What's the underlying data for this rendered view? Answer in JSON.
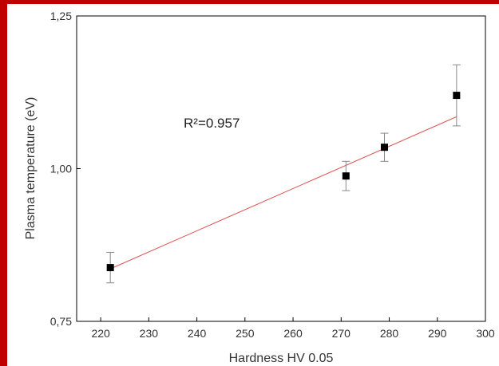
{
  "chart_data": {
    "type": "scatter",
    "xlabel": "Hardness HV 0.05",
    "ylabel": "Plasma temperature (eV)",
    "xlim": [
      215,
      300
    ],
    "ylim": [
      0.75,
      1.25
    ],
    "x_ticks": [
      220,
      230,
      240,
      250,
      260,
      270,
      280,
      290,
      300
    ],
    "y_ticks": [
      {
        "value": 0.75,
        "label": "0,75"
      },
      {
        "value": 1.0,
        "label": "1,00"
      },
      {
        "value": 1.25,
        "label": "1,25"
      }
    ],
    "points": [
      {
        "x": 222,
        "y": 0.838,
        "err": 0.025
      },
      {
        "x": 271,
        "y": 0.988,
        "err": 0.024
      },
      {
        "x": 279,
        "y": 1.035,
        "err": 0.023
      },
      {
        "x": 294,
        "y": 1.12,
        "err": 0.05
      }
    ],
    "fit_line": {
      "x": [
        222,
        294
      ],
      "y": [
        0.836,
        1.085
      ],
      "color": "#e05050"
    },
    "annotation": "R²=0.957",
    "grid": false,
    "colors": {
      "frame": "#c00000",
      "marker": "#000000",
      "errorbar": "#888888"
    }
  }
}
